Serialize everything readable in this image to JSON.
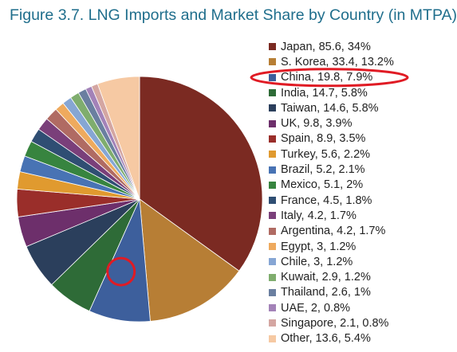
{
  "chart_data": {
    "type": "pie",
    "title": "Figure 3.7. LNG Imports and Market Share by Country (in MTPA)",
    "legend_position": "right",
    "slices": [
      {
        "label": "Japan, 85.6, 34%",
        "country": "Japan",
        "value": 85.6,
        "share": 34,
        "color": "#7b2a22"
      },
      {
        "label": "S. Korea, 33.4, 13.2%",
        "country": "S. Korea",
        "value": 33.4,
        "share": 13.2,
        "color": "#b77e35"
      },
      {
        "label": "China, 19.8, 7.9%",
        "country": "China",
        "value": 19.8,
        "share": 7.9,
        "color": "#3d5f9c"
      },
      {
        "label": "India, 14.7, 5.8%",
        "country": "India",
        "value": 14.7,
        "share": 5.8,
        "color": "#2e6b37"
      },
      {
        "label": "Taiwan, 14.6, 5.8%",
        "country": "Taiwan",
        "value": 14.6,
        "share": 5.8,
        "color": "#2b3f5c"
      },
      {
        "label": "UK, 9.8, 3.9%",
        "country": "UK",
        "value": 9.8,
        "share": 3.9,
        "color": "#6d2f6b"
      },
      {
        "label": "Spain, 8.9, 3.5%",
        "country": "Spain",
        "value": 8.9,
        "share": 3.5,
        "color": "#9a2e2a"
      },
      {
        "label": "Turkey, 5.6, 2.2%",
        "country": "Turkey",
        "value": 5.6,
        "share": 2.2,
        "color": "#e09a2f"
      },
      {
        "label": "Brazil, 5.2, 2.1%",
        "country": "Brazil",
        "value": 5.2,
        "share": 2.1,
        "color": "#4873b4"
      },
      {
        "label": "Mexico, 5.1, 2%",
        "country": "Mexico",
        "value": 5.1,
        "share": 2,
        "color": "#37843f"
      },
      {
        "label": "France, 4.5, 1.8%",
        "country": "France",
        "value": 4.5,
        "share": 1.8,
        "color": "#2f4e73"
      },
      {
        "label": "Italy, 4.2, 1.7%",
        "country": "Italy",
        "value": 4.2,
        "share": 1.7,
        "color": "#7a3f7a"
      },
      {
        "label": "Argentina, 4.2, 1.7%",
        "country": "Argentina",
        "value": 4.2,
        "share": 1.7,
        "color": "#b06b63"
      },
      {
        "label": "Egypt, 3, 1.2%",
        "country": "Egypt",
        "value": 3,
        "share": 1.2,
        "color": "#eeaa5e"
      },
      {
        "label": "Chile, 3, 1.2%",
        "country": "Chile",
        "value": 3,
        "share": 1.2,
        "color": "#86a6d4"
      },
      {
        "label": "Kuwait, 2.9, 1.2%",
        "country": "Kuwait",
        "value": 2.9,
        "share": 1.2,
        "color": "#7fad6e"
      },
      {
        "label": "Thailand, 2.6, 1%",
        "country": "Thailand",
        "value": 2.6,
        "share": 1,
        "color": "#6a7fa0"
      },
      {
        "label": "UAE, 2, 0.8%",
        "country": "UAE",
        "value": 2,
        "share": 0.8,
        "color": "#a382b8"
      },
      {
        "label": "Singapore, 2.1, 0.8%",
        "country": "Singapore",
        "value": 2.1,
        "share": 0.8,
        "color": "#d4a6a2"
      },
      {
        "label": "Other, 13.6, 5.4%",
        "country": "Other",
        "value": 13.6,
        "share": 5.4,
        "color": "#f6c9a3"
      }
    ],
    "annotations": [
      {
        "type": "ellipse-highlight",
        "target": "China",
        "where": "legend",
        "color": "#e01b24"
      },
      {
        "type": "circle-highlight",
        "target": "China",
        "where": "slice",
        "color": "#e01b24"
      }
    ]
  }
}
